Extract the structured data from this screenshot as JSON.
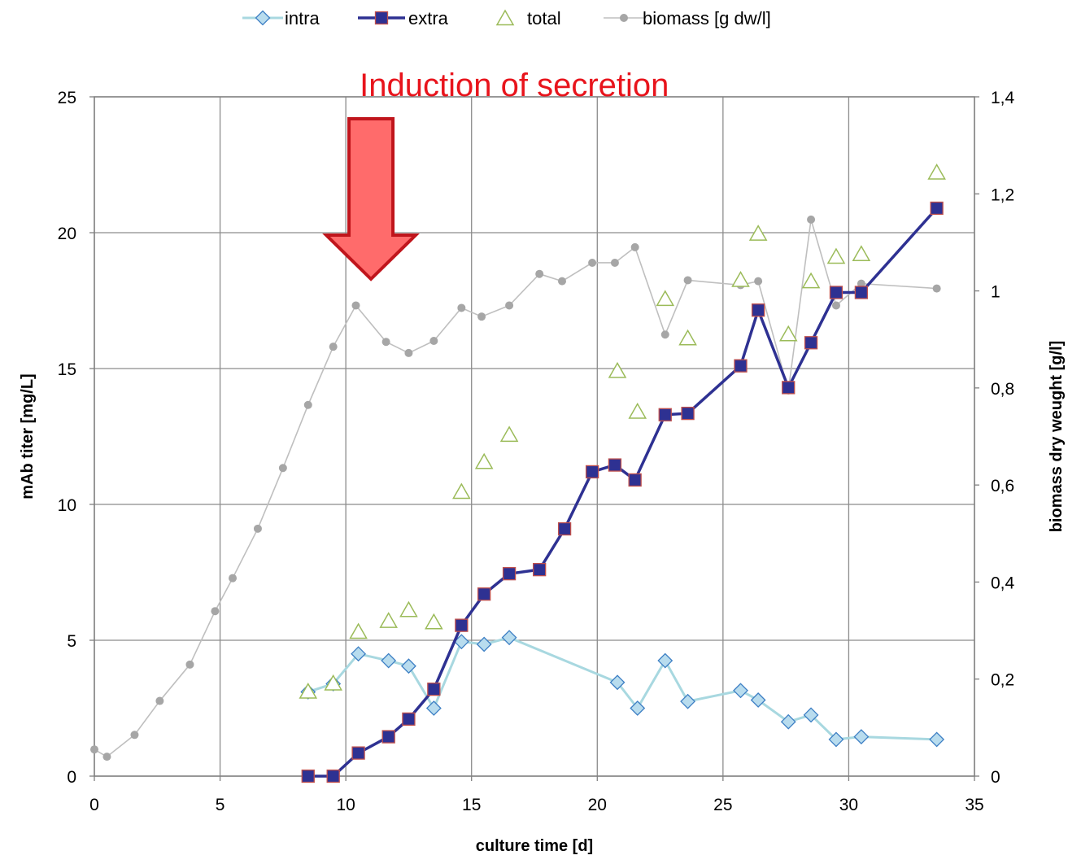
{
  "chart_data": {
    "type": "line",
    "title": "",
    "annotation": {
      "text": "Induction of secretion",
      "x": 11,
      "color": "#e8141c",
      "arrow_fill": "#ff6b6b",
      "arrow_stroke": "#c0151c"
    },
    "xlabel": "culture time [d]",
    "ylabel": "mAb titer [mg/L]",
    "y2label": "biomass dry weught [g/l]",
    "xlim": [
      0,
      35
    ],
    "ylim": [
      0,
      25
    ],
    "y2lim": [
      0,
      1.4
    ],
    "xticks": [
      0,
      5,
      10,
      15,
      20,
      25,
      30,
      35
    ],
    "xtick_labels": [
      "0",
      "5",
      "10",
      "15",
      "20",
      "25",
      "30",
      "35"
    ],
    "yticks": [
      0,
      5,
      10,
      15,
      20,
      25
    ],
    "ytick_labels": [
      "0",
      "5",
      "10",
      "15",
      "20",
      "25"
    ],
    "y2ticks": [
      0,
      0.2,
      0.4,
      0.6,
      0.8,
      1.0,
      1.2,
      1.4
    ],
    "y2tick_labels": [
      "0",
      "0,2",
      "0,4",
      "0,6",
      "0,8",
      "1",
      "1,2",
      "1,4"
    ],
    "grid": true,
    "legend_position": "top-center",
    "series": [
      {
        "name": "intra",
        "marker": "diamond",
        "color": "#a8d8e0",
        "marker_fill": "#b8dcee",
        "marker_stroke": "#3d7fc4",
        "axis": "left",
        "x": [
          8.5,
          9.5,
          10.5,
          11.7,
          12.5,
          13.5,
          14.6,
          15.5,
          16.5,
          20.8,
          21.6,
          22.7,
          23.6,
          25.7,
          26.4,
          27.6,
          28.5,
          29.5,
          30.5,
          33.5
        ],
        "y": [
          3.1,
          3.4,
          4.5,
          4.25,
          4.05,
          2.5,
          4.95,
          4.85,
          5.1,
          3.45,
          2.5,
          4.25,
          2.75,
          3.15,
          2.8,
          2.0,
          2.25,
          1.35,
          1.45,
          1.35
        ]
      },
      {
        "name": "extra",
        "marker": "square",
        "color": "#2e3192",
        "marker_fill": "#2e3192",
        "marker_stroke": "#c0504d",
        "axis": "left",
        "x": [
          8.5,
          9.5,
          10.5,
          11.7,
          12.5,
          13.5,
          14.6,
          15.5,
          16.5,
          17.7,
          18.7,
          19.8,
          20.7,
          21.5,
          22.7,
          23.6,
          25.7,
          26.4,
          27.6,
          28.5,
          29.5,
          30.5,
          33.5
        ],
        "y": [
          0,
          0,
          0.85,
          1.45,
          2.1,
          3.2,
          5.55,
          6.7,
          7.45,
          7.6,
          9.1,
          11.2,
          11.45,
          10.9,
          13.3,
          13.35,
          15.1,
          17.15,
          14.3,
          15.95,
          17.8,
          17.8,
          20.9
        ]
      },
      {
        "name": "total",
        "marker": "triangle",
        "color": "#9bbb59",
        "axis": "left",
        "x": [
          8.5,
          9.5,
          10.5,
          11.7,
          12.5,
          13.5,
          14.6,
          15.5,
          16.5,
          20.8,
          21.6,
          22.7,
          23.6,
          25.7,
          26.4,
          27.6,
          28.5,
          29.5,
          30.5,
          33.5
        ],
        "y": [
          3.1,
          3.4,
          5.3,
          5.7,
          6.1,
          5.65,
          10.45,
          11.55,
          12.55,
          14.9,
          13.4,
          17.55,
          16.1,
          18.25,
          19.95,
          16.25,
          18.2,
          19.1,
          19.2,
          22.2
        ]
      },
      {
        "name": "biomass [g dw/l]",
        "marker": "circle",
        "color": "#bfbfbf",
        "marker_fill": "#a6a6a6",
        "axis": "right",
        "x": [
          0,
          0.5,
          1.6,
          2.6,
          3.8,
          4.8,
          5.5,
          6.5,
          7.5,
          8.5,
          9.5,
          10.4,
          11.6,
          12.5,
          13.5,
          14.6,
          15.4,
          16.5,
          17.7,
          18.6,
          19.8,
          20.7,
          21.5,
          22.7,
          23.6,
          25.7,
          26.4,
          27.6,
          28.5,
          29.5,
          30.5,
          33.5
        ],
        "y": [
          0.055,
          0.04,
          0.085,
          0.155,
          0.23,
          0.34,
          0.408,
          0.51,
          0.635,
          0.765,
          0.885,
          0.97,
          0.895,
          0.872,
          0.897,
          0.965,
          0.947,
          0.97,
          1.035,
          1.02,
          1.058,
          1.058,
          1.09,
          0.91,
          1.022,
          1.012,
          1.02,
          0.795,
          1.147,
          0.97,
          1.015,
          1.005
        ]
      }
    ]
  }
}
